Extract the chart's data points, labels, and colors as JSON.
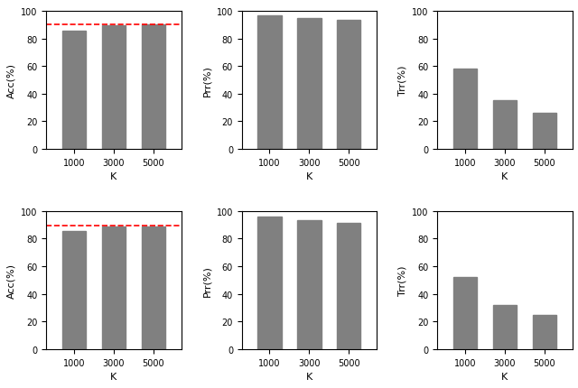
{
  "categories": [
    "1000",
    "3000",
    "5000"
  ],
  "row1": {
    "acc": [
      85.5,
      89.5,
      90.0
    ],
    "prr": [
      97.0,
      94.5,
      93.5
    ],
    "trr": [
      58.0,
      35.0,
      26.0
    ]
  },
  "row2": {
    "acc": [
      85.5,
      88.5,
      89.0
    ],
    "prr": [
      96.0,
      93.5,
      91.5
    ],
    "trr": [
      52.5,
      32.0,
      25.0
    ]
  },
  "acc_dashed_row1": 90.0,
  "acc_dashed_row2": 89.5,
  "bar_color": "#808080",
  "dashed_color": "red",
  "ylim": [
    0,
    100
  ],
  "ylabel_acc": "Acc(%)",
  "ylabel_prr": "Prr(%)",
  "ylabel_trr": "Trr(%)",
  "xlabel": "K",
  "bar_width": 0.6,
  "tick_fontsize": 7,
  "label_fontsize": 8
}
